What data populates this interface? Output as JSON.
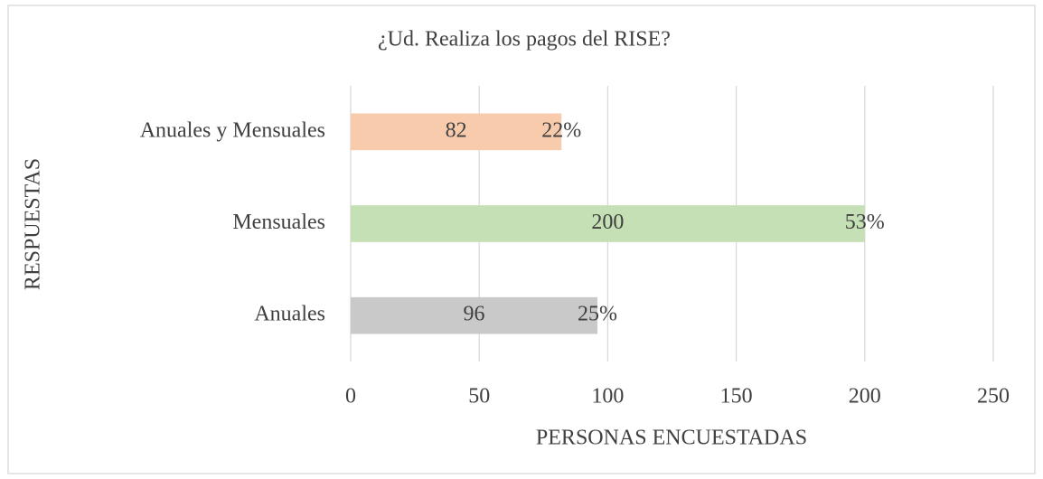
{
  "chart_data": {
    "type": "bar",
    "orientation": "horizontal",
    "title": "¿Ud. Realiza los pagos del RISE?",
    "x_label": "PERSONAS ENCUESTADAS",
    "y_label": "RESPUESTAS",
    "categories": [
      "Anuales",
      "Mensuales",
      "Anuales y Mensuales"
    ],
    "values": [
      96,
      200,
      82
    ],
    "colors": [
      "#c9c9c9",
      "#c5e0b4",
      "#f8cbad"
    ],
    "shares": {
      "values": [
        25,
        53,
        22
      ],
      "value_labels": [
        "25%",
        "53%",
        "22%"
      ]
    },
    "xlim": [
      0,
      250
    ],
    "xticks": [
      0,
      50,
      100,
      150,
      200,
      250
    ],
    "grid": true
  }
}
